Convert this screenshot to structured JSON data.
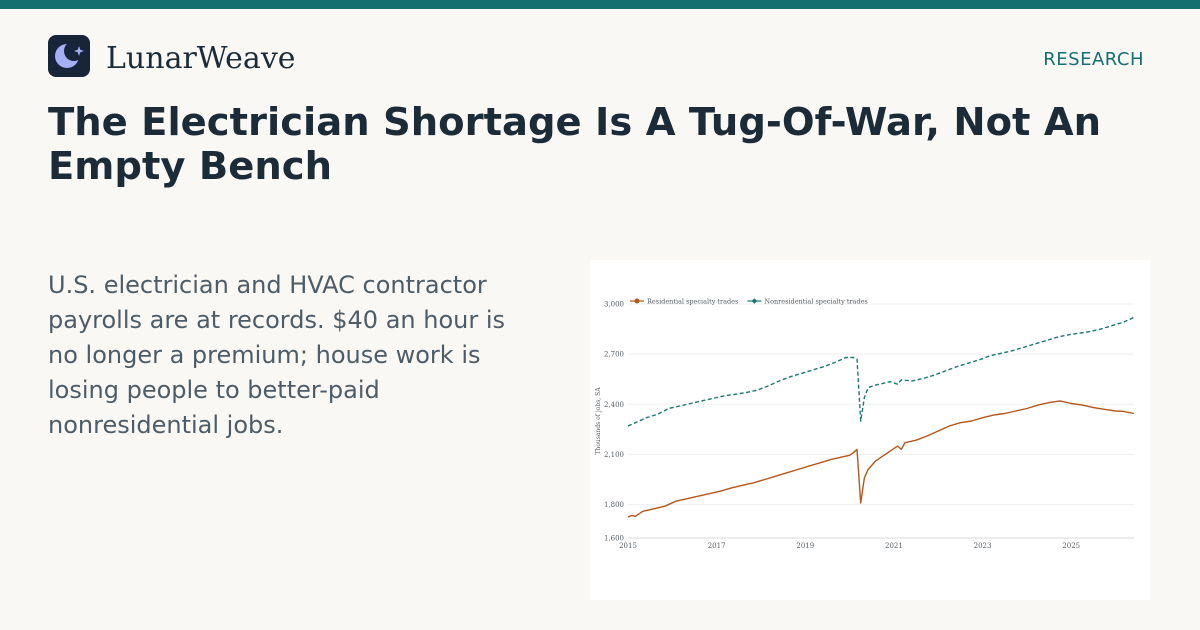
{
  "brand": {
    "name": "LunarWeave",
    "logo_icon": "crescent-moon-icon",
    "logo_bg": "#17243a",
    "logo_moon": "#a5aef5",
    "accent": "#146f70"
  },
  "section_label": "RESEARCH",
  "headline": "The Electrician Shortage Is A Tug-Of-War, Not An Empty Bench",
  "summary": "U.S. electrician and HVAC contractor payrolls are at records. $40 an hour is no longer a premium; house work is losing people to better-paid nonresidential jobs.",
  "chart_data": {
    "type": "line",
    "xlabel": "",
    "ylabel": "Thousands of jobs, SA",
    "xlim": [
      "2015-01",
      "2026-06"
    ],
    "ylim": [
      1600,
      3000
    ],
    "y_ticks": [
      1600,
      1800,
      2100,
      2400,
      2700,
      3000
    ],
    "y_tick_labels": [
      "1,600",
      "1,800",
      "2,100",
      "2,400",
      "2,700",
      "3,000"
    ],
    "x_ticks": [
      "2015-01",
      "2017-01",
      "2019-01",
      "2021-01",
      "2023-01",
      "2025-01"
    ],
    "x_tick_labels": [
      "2015",
      "2017",
      "2019",
      "2021",
      "2023",
      "2025"
    ],
    "grid": true,
    "legend_position": "top-left",
    "series": [
      {
        "name": "Residential specialty trades",
        "color": "#b5561a",
        "style": "solid",
        "marker": "circle",
        "points": [
          [
            "2015-01",
            1725
          ],
          [
            "2015-02",
            1735
          ],
          [
            "2015-03",
            1730
          ],
          [
            "2015-05",
            1760
          ],
          [
            "2015-08",
            1775
          ],
          [
            "2015-11",
            1790
          ],
          [
            "2016-02",
            1820
          ],
          [
            "2016-05",
            1835
          ],
          [
            "2016-08",
            1850
          ],
          [
            "2016-11",
            1865
          ],
          [
            "2017-02",
            1880
          ],
          [
            "2017-05",
            1900
          ],
          [
            "2017-08",
            1915
          ],
          [
            "2017-11",
            1930
          ],
          [
            "2018-02",
            1950
          ],
          [
            "2018-05",
            1970
          ],
          [
            "2018-08",
            1990
          ],
          [
            "2018-11",
            2010
          ],
          [
            "2019-02",
            2030
          ],
          [
            "2019-05",
            2050
          ],
          [
            "2019-08",
            2070
          ],
          [
            "2019-11",
            2085
          ],
          [
            "2020-01",
            2095
          ],
          [
            "2020-02",
            2110
          ],
          [
            "2020-03",
            2130
          ],
          [
            "2020-04",
            1810
          ],
          [
            "2020-05",
            1960
          ],
          [
            "2020-06",
            2010
          ],
          [
            "2020-08",
            2060
          ],
          [
            "2020-10",
            2090
          ],
          [
            "2020-12",
            2120
          ],
          [
            "2021-02",
            2150
          ],
          [
            "2021-03",
            2130
          ],
          [
            "2021-04",
            2170
          ],
          [
            "2021-07",
            2185
          ],
          [
            "2021-10",
            2210
          ],
          [
            "2022-01",
            2240
          ],
          [
            "2022-04",
            2270
          ],
          [
            "2022-07",
            2290
          ],
          [
            "2022-10",
            2300
          ],
          [
            "2023-01",
            2320
          ],
          [
            "2023-04",
            2335
          ],
          [
            "2023-07",
            2345
          ],
          [
            "2023-10",
            2360
          ],
          [
            "2024-01",
            2375
          ],
          [
            "2024-04",
            2395
          ],
          [
            "2024-07",
            2410
          ],
          [
            "2024-10",
            2420
          ],
          [
            "2025-01",
            2405
          ],
          [
            "2025-04",
            2395
          ],
          [
            "2025-07",
            2380
          ],
          [
            "2025-10",
            2370
          ],
          [
            "2026-01",
            2360
          ],
          [
            "2026-03",
            2358
          ],
          [
            "2026-06",
            2345
          ]
        ]
      },
      {
        "name": "Nonresidential specialty trades",
        "color": "#1c7770",
        "style": "dashed",
        "marker": "diamond",
        "points": [
          [
            "2015-01",
            2270
          ],
          [
            "2015-03",
            2290
          ],
          [
            "2015-06",
            2320
          ],
          [
            "2015-09",
            2340
          ],
          [
            "2015-12",
            2375
          ],
          [
            "2016-03",
            2390
          ],
          [
            "2016-06",
            2405
          ],
          [
            "2016-09",
            2420
          ],
          [
            "2016-12",
            2435
          ],
          [
            "2017-03",
            2450
          ],
          [
            "2017-06",
            2460
          ],
          [
            "2017-09",
            2470
          ],
          [
            "2017-12",
            2485
          ],
          [
            "2018-03",
            2510
          ],
          [
            "2018-06",
            2540
          ],
          [
            "2018-09",
            2565
          ],
          [
            "2018-12",
            2585
          ],
          [
            "2019-03",
            2605
          ],
          [
            "2019-06",
            2625
          ],
          [
            "2019-09",
            2650
          ],
          [
            "2019-12",
            2680
          ],
          [
            "2020-02",
            2680
          ],
          [
            "2020-03",
            2670
          ],
          [
            "2020-04",
            2300
          ],
          [
            "2020-05",
            2440
          ],
          [
            "2020-06",
            2500
          ],
          [
            "2020-08",
            2515
          ],
          [
            "2020-10",
            2525
          ],
          [
            "2020-12",
            2535
          ],
          [
            "2021-02",
            2520
          ],
          [
            "2021-03",
            2545
          ],
          [
            "2021-06",
            2540
          ],
          [
            "2021-09",
            2555
          ],
          [
            "2021-12",
            2575
          ],
          [
            "2022-03",
            2600
          ],
          [
            "2022-06",
            2625
          ],
          [
            "2022-09",
            2645
          ],
          [
            "2022-12",
            2665
          ],
          [
            "2023-03",
            2690
          ],
          [
            "2023-06",
            2705
          ],
          [
            "2023-09",
            2720
          ],
          [
            "2023-12",
            2740
          ],
          [
            "2024-03",
            2760
          ],
          [
            "2024-06",
            2780
          ],
          [
            "2024-09",
            2800
          ],
          [
            "2024-12",
            2815
          ],
          [
            "2025-03",
            2825
          ],
          [
            "2025-06",
            2835
          ],
          [
            "2025-09",
            2850
          ],
          [
            "2025-12",
            2870
          ],
          [
            "2026-03",
            2890
          ],
          [
            "2026-06",
            2920
          ]
        ]
      }
    ]
  }
}
